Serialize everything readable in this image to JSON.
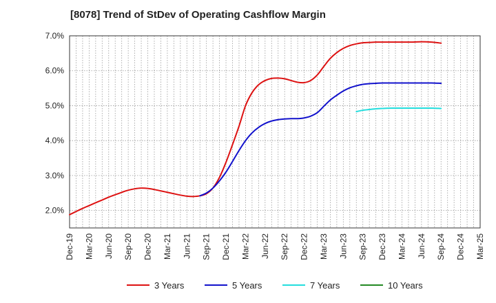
{
  "chart_data": {
    "type": "line",
    "title": "[8078]  Trend of StDev of Operating Cashflow Margin",
    "xlabel": "",
    "ylabel": "",
    "x_categories": [
      "Dec-19",
      "Mar-20",
      "Jun-20",
      "Sep-20",
      "Dec-20",
      "Mar-21",
      "Jun-21",
      "Sep-21",
      "Dec-21",
      "Mar-22",
      "Jun-22",
      "Sep-22",
      "Dec-22",
      "Mar-23",
      "Jun-23",
      "Sep-23",
      "Dec-23",
      "Mar-24",
      "Jun-24",
      "Sep-24",
      "Dec-24",
      "Mar-25"
    ],
    "x_range": [
      0,
      21
    ],
    "y_ticks": [
      "2.0%",
      "3.0%",
      "4.0%",
      "5.0%",
      "6.0%",
      "7.0%"
    ],
    "y_tick_values": [
      2.0,
      3.0,
      4.0,
      5.0,
      6.0,
      7.0
    ],
    "ylim": [
      1.5,
      7.0
    ],
    "grid": true,
    "legend_position": "bottom",
    "series": [
      {
        "name": "3 Years",
        "color": "#dd1111",
        "points": [
          [
            0,
            1.88
          ],
          [
            0.33,
            1.97
          ],
          [
            0.67,
            2.06
          ],
          [
            1,
            2.14
          ],
          [
            1.33,
            2.22
          ],
          [
            1.67,
            2.3
          ],
          [
            2,
            2.38
          ],
          [
            2.33,
            2.45
          ],
          [
            2.67,
            2.52
          ],
          [
            3,
            2.58
          ],
          [
            3.33,
            2.62
          ],
          [
            3.67,
            2.64
          ],
          [
            4,
            2.63
          ],
          [
            4.33,
            2.6
          ],
          [
            4.67,
            2.56
          ],
          [
            5,
            2.52
          ],
          [
            5.33,
            2.48
          ],
          [
            5.67,
            2.44
          ],
          [
            6,
            2.41
          ],
          [
            6.33,
            2.4
          ],
          [
            6.67,
            2.42
          ],
          [
            7,
            2.48
          ],
          [
            7.33,
            2.64
          ],
          [
            7.67,
            2.95
          ],
          [
            8,
            3.38
          ],
          [
            8.33,
            3.88
          ],
          [
            8.67,
            4.42
          ],
          [
            9,
            5.0
          ],
          [
            9.33,
            5.37
          ],
          [
            9.67,
            5.6
          ],
          [
            10,
            5.72
          ],
          [
            10.33,
            5.78
          ],
          [
            10.67,
            5.79
          ],
          [
            11,
            5.77
          ],
          [
            11.33,
            5.72
          ],
          [
            11.67,
            5.67
          ],
          [
            12,
            5.66
          ],
          [
            12.33,
            5.72
          ],
          [
            12.67,
            5.88
          ],
          [
            13,
            6.12
          ],
          [
            13.33,
            6.35
          ],
          [
            13.67,
            6.52
          ],
          [
            14,
            6.64
          ],
          [
            14.33,
            6.72
          ],
          [
            14.67,
            6.77
          ],
          [
            15,
            6.8
          ],
          [
            15.33,
            6.81
          ],
          [
            15.67,
            6.82
          ],
          [
            16,
            6.82
          ],
          [
            16.5,
            6.82
          ],
          [
            17,
            6.82
          ],
          [
            17.5,
            6.82
          ],
          [
            18,
            6.83
          ],
          [
            18.5,
            6.82
          ],
          [
            19,
            6.79
          ]
        ]
      },
      {
        "name": "5 Years",
        "color": "#1111cc",
        "points": [
          [
            6.67,
            2.42
          ],
          [
            7,
            2.5
          ],
          [
            7.33,
            2.64
          ],
          [
            7.67,
            2.85
          ],
          [
            8,
            3.1
          ],
          [
            8.33,
            3.4
          ],
          [
            8.67,
            3.72
          ],
          [
            9,
            4.0
          ],
          [
            9.33,
            4.22
          ],
          [
            9.67,
            4.38
          ],
          [
            10,
            4.49
          ],
          [
            10.33,
            4.56
          ],
          [
            10.67,
            4.6
          ],
          [
            11,
            4.62
          ],
          [
            11.33,
            4.63
          ],
          [
            11.67,
            4.63
          ],
          [
            12,
            4.65
          ],
          [
            12.33,
            4.7
          ],
          [
            12.67,
            4.8
          ],
          [
            13,
            4.98
          ],
          [
            13.33,
            5.16
          ],
          [
            13.67,
            5.3
          ],
          [
            14,
            5.42
          ],
          [
            14.33,
            5.51
          ],
          [
            14.67,
            5.57
          ],
          [
            15,
            5.61
          ],
          [
            15.33,
            5.63
          ],
          [
            15.67,
            5.64
          ],
          [
            16,
            5.65
          ],
          [
            16.5,
            5.65
          ],
          [
            17,
            5.65
          ],
          [
            17.5,
            5.65
          ],
          [
            18,
            5.65
          ],
          [
            18.5,
            5.65
          ],
          [
            19,
            5.64
          ]
        ]
      },
      {
        "name": "7 Years",
        "color": "#22dddd",
        "points": [
          [
            14.67,
            4.83
          ],
          [
            15,
            4.87
          ],
          [
            15.33,
            4.89
          ],
          [
            15.67,
            4.91
          ],
          [
            16,
            4.92
          ],
          [
            16.5,
            4.93
          ],
          [
            17,
            4.93
          ],
          [
            17.5,
            4.93
          ],
          [
            18,
            4.93
          ],
          [
            18.5,
            4.93
          ],
          [
            19,
            4.92
          ]
        ]
      },
      {
        "name": "10 Years",
        "color": "#228822",
        "points": []
      }
    ]
  }
}
